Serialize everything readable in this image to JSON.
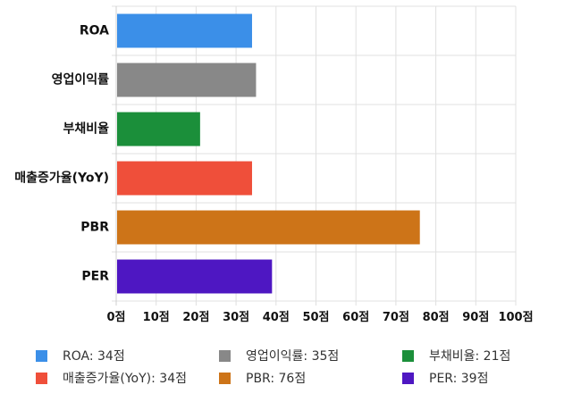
{
  "chart_data": {
    "type": "bar",
    "orientation": "horizontal",
    "categories": [
      "ROA",
      "영업이익률",
      "부채비율",
      "매출증가율(YoY)",
      "PBR",
      "PER"
    ],
    "values": [
      34,
      35,
      21,
      34,
      76,
      39
    ],
    "colors": [
      "#3b8fe8",
      "#888888",
      "#1b8f3a",
      "#ef4f3a",
      "#cd7418",
      "#4e17c2"
    ],
    "xlim": [
      0,
      100
    ],
    "x_ticks": [
      "0점",
      "10점",
      "20점",
      "30점",
      "40점",
      "50점",
      "60점",
      "70점",
      "80점",
      "90점",
      "100점"
    ],
    "grid": true,
    "legend_position": "bottom",
    "legend": [
      "ROA: 34점",
      "영업이익률: 35점",
      "부채비율: 21점",
      "매출증가율(YoY): 34점",
      "PBR: 76점",
      "PER: 39점"
    ]
  }
}
